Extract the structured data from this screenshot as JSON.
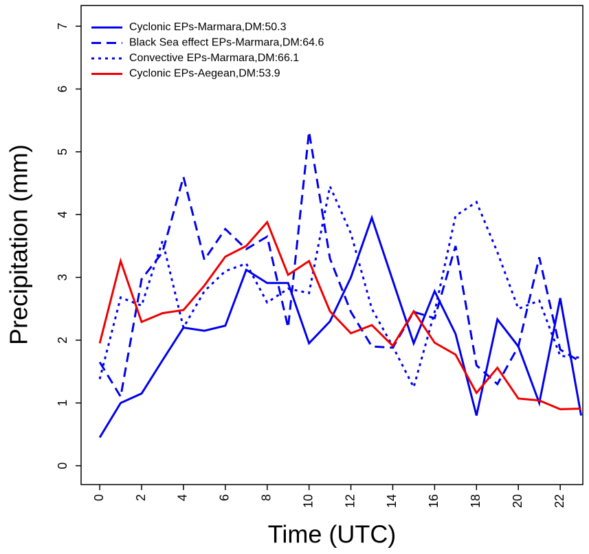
{
  "chart_data": {
    "type": "line",
    "x_label": "Time (UTC)",
    "y_label": "Precipitation (mm)",
    "x": [
      0,
      1,
      2,
      3,
      4,
      5,
      6,
      7,
      8,
      9,
      10,
      11,
      12,
      13,
      14,
      15,
      16,
      17,
      18,
      19,
      20,
      21,
      22,
      23
    ],
    "series": [
      {
        "name": "Cyclonic EPs-Marmara,DM:50.3",
        "color": "#0000ee",
        "linestyle": "solid",
        "values": [
          0.45,
          1.0,
          1.15,
          1.68,
          2.2,
          2.15,
          2.23,
          3.12,
          2.91,
          2.91,
          1.95,
          2.3,
          3.0,
          3.95,
          2.95,
          1.95,
          2.78,
          2.1,
          0.8,
          2.33,
          1.9,
          1.0,
          2.67,
          0.8
        ]
      },
      {
        "name": "Black Sea effect EPs-Marmara,DM:64.6",
        "color": "#0000ee",
        "linestyle": "dashed",
        "values": [
          1.65,
          1.1,
          2.97,
          3.4,
          4.6,
          3.28,
          3.77,
          3.45,
          3.65,
          2.2,
          5.32,
          3.3,
          2.45,
          1.9,
          1.88,
          2.45,
          2.35,
          3.5,
          1.6,
          1.3,
          1.9,
          3.32,
          1.85,
          1.65
        ]
      },
      {
        "name": "Convective EPs-Marmara,DM:66.1",
        "color": "#0000ee",
        "linestyle": "dotted",
        "values": [
          1.38,
          2.68,
          2.55,
          3.58,
          2.2,
          2.78,
          3.1,
          3.22,
          2.6,
          2.82,
          2.75,
          4.45,
          3.7,
          2.5,
          1.9,
          1.25,
          2.45,
          3.98,
          4.2,
          3.4,
          2.5,
          2.63,
          1.75,
          1.72
        ]
      },
      {
        "name": "Cyclonic EPs-Aegean,DM:53.9",
        "color": "#ee0000",
        "linestyle": "solid",
        "values": [
          1.95,
          3.26,
          2.29,
          2.43,
          2.48,
          2.87,
          3.33,
          3.5,
          3.88,
          3.04,
          3.26,
          2.46,
          2.11,
          2.24,
          1.91,
          2.46,
          1.96,
          1.77,
          1.16,
          1.56,
          1.07,
          1.04,
          0.9,
          0.91
        ]
      }
    ],
    "xlim": [
      -0.89,
      23.08
    ],
    "ylim": [
      -0.3,
      7.33
    ],
    "xticks": [
      0,
      2,
      4,
      6,
      8,
      10,
      12,
      14,
      16,
      18,
      20,
      22
    ],
    "yticks": [
      0,
      1,
      2,
      3,
      4,
      5,
      6,
      7
    ],
    "legend": "top-left",
    "grid": false
  }
}
